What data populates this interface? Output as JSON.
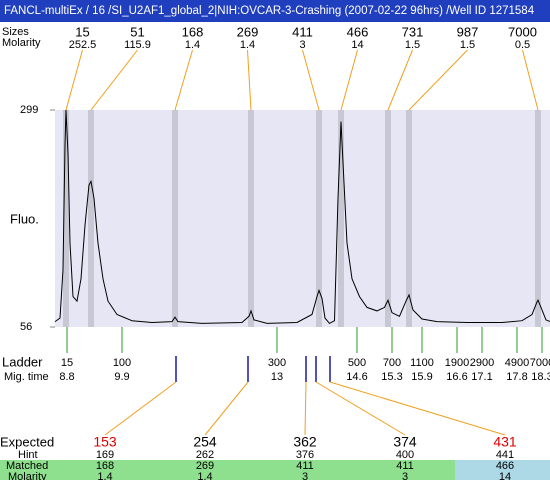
{
  "chart_data": {
    "type": "line",
    "title": "FANCL-multiEx / 16 /SI_U2AF1_global_2|NIH:OVCAR-3-Crashing (2007-02-22 96hrs) /Well ID 1271584",
    "y_label": "Fluo.",
    "color": "#000000",
    "xlim": [
      8.56,
      18.46
    ],
    "ylim": [
      56,
      299
    ],
    "yticks": [
      56,
      299
    ],
    "x": [
      8.56,
      8.66,
      8.72,
      8.76,
      8.78,
      8.82,
      8.86,
      8.92,
      9.0,
      9.08,
      9.16,
      9.24,
      9.28,
      9.34,
      9.42,
      9.52,
      9.62,
      9.8,
      10.1,
      10.5,
      10.9,
      10.96,
      11.02,
      11.5,
      12.3,
      12.44,
      12.48,
      12.54,
      12.8,
      13.4,
      13.7,
      13.8,
      13.84,
      13.9,
      13.96,
      14.05,
      14.15,
      14.22,
      14.28,
      14.32,
      14.4,
      14.5,
      14.65,
      14.8,
      15.0,
      15.15,
      15.22,
      15.3,
      15.45,
      15.58,
      15.64,
      15.72,
      15.9,
      16.2,
      16.8,
      17.5,
      17.9,
      18.1,
      18.2,
      18.22,
      18.28,
      18.38,
      18.46
    ],
    "values": [
      62,
      66,
      120,
      260,
      299,
      250,
      150,
      90,
      85,
      110,
      170,
      215,
      219,
      200,
      150,
      110,
      85,
      70,
      63,
      61,
      62,
      67,
      62,
      60,
      61,
      68,
      74,
      64,
      60,
      61,
      70,
      90,
      97,
      88,
      66,
      60,
      63,
      200,
      286,
      240,
      150,
      110,
      90,
      78,
      74,
      78,
      86,
      72,
      68,
      85,
      92,
      75,
      65,
      62,
      61,
      61,
      63,
      70,
      84,
      86,
      78,
      64,
      62
    ],
    "peaks": {
      "size_label": "Sizes",
      "molarity_label": "Molarity",
      "sizes": [
        15,
        51,
        168,
        269,
        411,
        466,
        731,
        987,
        7000
      ],
      "molarity": [
        252.5,
        115.9,
        1.4,
        1.4,
        3,
        14,
        1.5,
        1.5,
        0.5
      ],
      "time": [
        8.78,
        9.28,
        10.96,
        12.48,
        13.84,
        14.28,
        15.22,
        15.64,
        18.22
      ],
      "band_color": "#c8c8d4",
      "line_color": "#f0a020"
    },
    "ladder": {
      "label": "Ladder",
      "time_label": "Mig. time",
      "sizes": [
        15,
        100,
        300,
        500,
        700,
        1100,
        1900,
        2900,
        4900,
        7000
      ],
      "time": [
        8.8,
        9.9,
        13,
        14.6,
        15.3,
        15.9,
        16.6,
        17.1,
        17.8,
        18.3
      ],
      "color": "#2a9a2a"
    },
    "expected": {
      "label": "Expected",
      "hint_label": "Hint",
      "matched_label": "Matched",
      "molarity_label": "Molarity",
      "values": [
        153,
        254,
        362,
        374,
        431
      ],
      "value_colors": [
        "#e00000",
        "#000000",
        "#000000",
        "#000000",
        "#e00000"
      ],
      "hint": [
        169,
        262,
        376,
        400,
        441
      ],
      "matched": [
        168,
        269,
        411,
        411,
        466
      ],
      "molarity": [
        1.4,
        1.4,
        3,
        3,
        14
      ],
      "cell_colors": [
        "#8ee08e",
        "#8ee08e",
        "#8ee08e",
        "#8ee08e",
        "#add8e6"
      ],
      "time": [
        10.98,
        12.42,
        13.58,
        13.78,
        14.06
      ],
      "marker_color": "#1a1aa0"
    }
  }
}
